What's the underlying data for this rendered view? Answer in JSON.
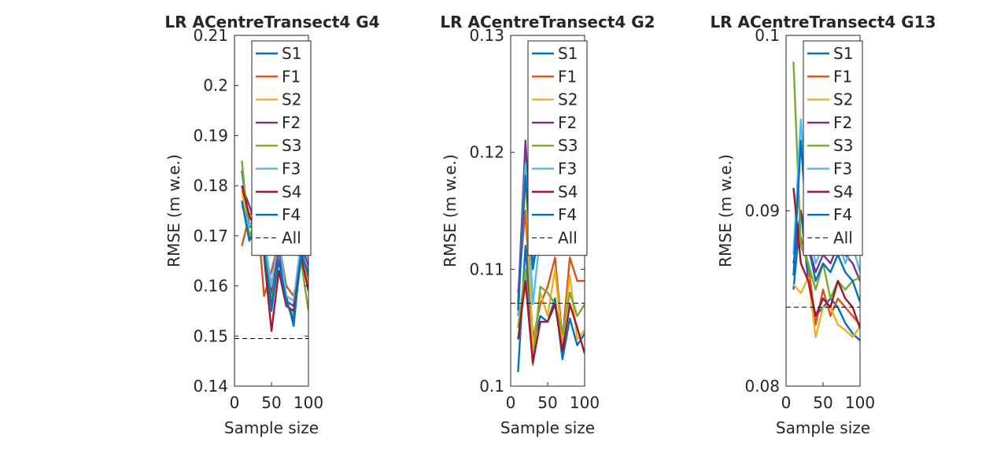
{
  "chart_data": [
    {
      "type": "line",
      "title": "LR ACentreTransect4 G4",
      "xlabel": "Sample size",
      "ylabel": "RMSE (m w.e.)",
      "xlim": [
        0,
        100
      ],
      "ylim": [
        0.14,
        0.21
      ],
      "xticks": [
        0,
        50,
        100
      ],
      "xtick_labels": [
        "0",
        "50",
        "100"
      ],
      "yticks": [
        0.14,
        0.15,
        0.16,
        0.17,
        0.18,
        0.19,
        0.2,
        0.21
      ],
      "ytick_labels": [
        "0.14",
        "0.15",
        "0.16",
        "0.17",
        "0.18",
        "0.19",
        "0.2",
        "0.21"
      ],
      "x": [
        10,
        20,
        30,
        40,
        50,
        60,
        70,
        80,
        90,
        100
      ],
      "legend_position": "top-right",
      "all_value": 0.1495,
      "all_name": "All",
      "series": [
        {
          "name": "S1",
          "color": "#0072BD",
          "values": [
            0.183,
            0.172,
            0.171,
            0.17,
            0.155,
            0.166,
            0.158,
            0.152,
            0.167,
            0.162
          ]
        },
        {
          "name": "F1",
          "color": "#D95319",
          "values": [
            0.168,
            0.174,
            0.176,
            0.158,
            0.163,
            0.169,
            0.16,
            0.158,
            0.165,
            0.161
          ]
        },
        {
          "name": "S2",
          "color": "#EDB120",
          "values": [
            0.179,
            0.17,
            0.168,
            0.169,
            0.16,
            0.167,
            0.158,
            0.157,
            0.166,
            0.16
          ]
        },
        {
          "name": "F2",
          "color": "#7E2F8E",
          "values": [
            0.18,
            0.176,
            0.172,
            0.171,
            0.158,
            0.168,
            0.157,
            0.156,
            0.168,
            0.164
          ]
        },
        {
          "name": "S3",
          "color": "#77AC30",
          "values": [
            0.185,
            0.17,
            0.173,
            0.168,
            0.157,
            0.165,
            0.157,
            0.154,
            0.165,
            0.155
          ]
        },
        {
          "name": "F3",
          "color": "#4DBEEE",
          "values": [
            0.176,
            0.172,
            0.174,
            0.17,
            0.16,
            0.17,
            0.158,
            0.157,
            0.169,
            0.165
          ]
        },
        {
          "name": "S4",
          "color": "#A2142F",
          "values": [
            0.18,
            0.174,
            0.171,
            0.166,
            0.151,
            0.163,
            0.156,
            0.155,
            0.166,
            0.159
          ]
        },
        {
          "name": "F4",
          "color": "#0072BD",
          "values": [
            0.177,
            0.169,
            0.172,
            0.167,
            0.156,
            0.165,
            0.157,
            0.153,
            0.166,
            0.163
          ]
        }
      ]
    },
    {
      "type": "line",
      "title": "LR ACentreTransect4 G2",
      "xlabel": "Sample size",
      "ylabel": "RMSE (m w.e.)",
      "xlim": [
        0,
        100
      ],
      "ylim": [
        0.1,
        0.13
      ],
      "xticks": [
        0,
        50,
        100
      ],
      "xtick_labels": [
        "0",
        "50",
        "100"
      ],
      "yticks": [
        0.1,
        0.11,
        0.12,
        0.13
      ],
      "ytick_labels": [
        "0.1",
        "0.11",
        "0.12",
        "0.13"
      ],
      "x": [
        10,
        20,
        30,
        40,
        50,
        60,
        70,
        80,
        90,
        100
      ],
      "legend_position": "top-right",
      "all_value": 0.1071,
      "all_name": "All",
      "series": [
        {
          "name": "S1",
          "color": "#0072BD",
          "values": [
            0.1012,
            0.112,
            0.1035,
            0.106,
            0.1055,
            0.1075,
            0.1023,
            0.1058,
            0.1035,
            0.1045
          ]
        },
        {
          "name": "F1",
          "color": "#D95319",
          "values": [
            0.108,
            0.115,
            0.104,
            0.107,
            0.1085,
            0.111,
            0.104,
            0.111,
            0.109,
            0.109
          ]
        },
        {
          "name": "S2",
          "color": "#EDB120",
          "values": [
            0.106,
            0.118,
            0.103,
            0.108,
            0.106,
            0.11,
            0.1035,
            0.1095,
            0.104,
            0.1048
          ]
        },
        {
          "name": "F2",
          "color": "#7E2F8E",
          "values": [
            0.107,
            0.121,
            0.11,
            0.115,
            0.116,
            0.12,
            0.119,
            0.123,
            0.122,
            0.1195
          ]
        },
        {
          "name": "S3",
          "color": "#77AC30",
          "values": [
            0.105,
            0.11,
            0.1018,
            0.1085,
            0.108,
            0.107,
            0.1045,
            0.108,
            0.106,
            0.107
          ]
        },
        {
          "name": "F3",
          "color": "#4DBEEE",
          "values": [
            0.106,
            0.119,
            0.107,
            0.113,
            0.114,
            0.117,
            0.116,
            0.118,
            0.118,
            0.116
          ]
        },
        {
          "name": "S4",
          "color": "#A2142F",
          "values": [
            0.104,
            0.109,
            0.102,
            0.1055,
            0.1055,
            0.107,
            0.103,
            0.107,
            0.105,
            0.1028
          ]
        },
        {
          "name": "F4",
          "color": "#0072BD",
          "values": [
            0.1065,
            0.118,
            0.11,
            0.114,
            0.114,
            0.115,
            0.114,
            0.1165,
            0.1172,
            0.114
          ]
        }
      ]
    },
    {
      "type": "line",
      "title": "LR ACentreTransect4 G13",
      "xlabel": "Sample size",
      "ylabel": "RMSE (m w.e.)",
      "xlim": [
        0,
        100
      ],
      "ylim": [
        0.08,
        0.1
      ],
      "xticks": [
        0,
        50,
        100
      ],
      "xtick_labels": [
        "0",
        "50",
        "100"
      ],
      "yticks": [
        0.08,
        0.09,
        0.1
      ],
      "ytick_labels": [
        "0.08",
        "0.09",
        "0.1"
      ],
      "x": [
        10,
        20,
        30,
        40,
        50,
        60,
        70,
        80,
        90,
        100
      ],
      "legend_position": "top-right",
      "all_value": 0.0845,
      "all_name": "All",
      "series": [
        {
          "name": "S1",
          "color": "#0072BD",
          "values": [
            0.0855,
            0.09,
            0.086,
            0.084,
            0.0845,
            0.085,
            0.0845,
            0.0836,
            0.083,
            0.0826
          ]
        },
        {
          "name": "F1",
          "color": "#D95319",
          "values": [
            0.088,
            0.0885,
            0.087,
            0.0835,
            0.0855,
            0.084,
            0.085,
            0.0845,
            0.084,
            0.0835
          ]
        },
        {
          "name": "S2",
          "color": "#EDB120",
          "values": [
            0.0858,
            0.0853,
            0.0862,
            0.0828,
            0.0845,
            0.0845,
            0.0835,
            0.0832,
            0.0828,
            0.0834
          ]
        },
        {
          "name": "F2",
          "color": "#7E2F8E",
          "values": [
            0.087,
            0.09,
            0.088,
            0.0865,
            0.0875,
            0.087,
            0.088,
            0.0875,
            0.087,
            0.086
          ]
        },
        {
          "name": "S3",
          "color": "#77AC30",
          "values": [
            0.0985,
            0.088,
            0.087,
            0.0855,
            0.087,
            0.085,
            0.086,
            0.0855,
            0.086,
            0.0862
          ]
        },
        {
          "name": "F3",
          "color": "#4DBEEE",
          "values": [
            0.0875,
            0.0952,
            0.089,
            0.087,
            0.088,
            0.0875,
            0.0885,
            0.087,
            0.088,
            0.0865
          ]
        },
        {
          "name": "S4",
          "color": "#A2142F",
          "values": [
            0.0913,
            0.087,
            0.086,
            0.084,
            0.085,
            0.0845,
            0.086,
            0.085,
            0.0845,
            0.0833
          ]
        },
        {
          "name": "F4",
          "color": "#0072BD",
          "values": [
            0.0863,
            0.094,
            0.088,
            0.086,
            0.087,
            0.0865,
            0.0875,
            0.0865,
            0.086,
            0.0848
          ]
        }
      ]
    }
  ]
}
